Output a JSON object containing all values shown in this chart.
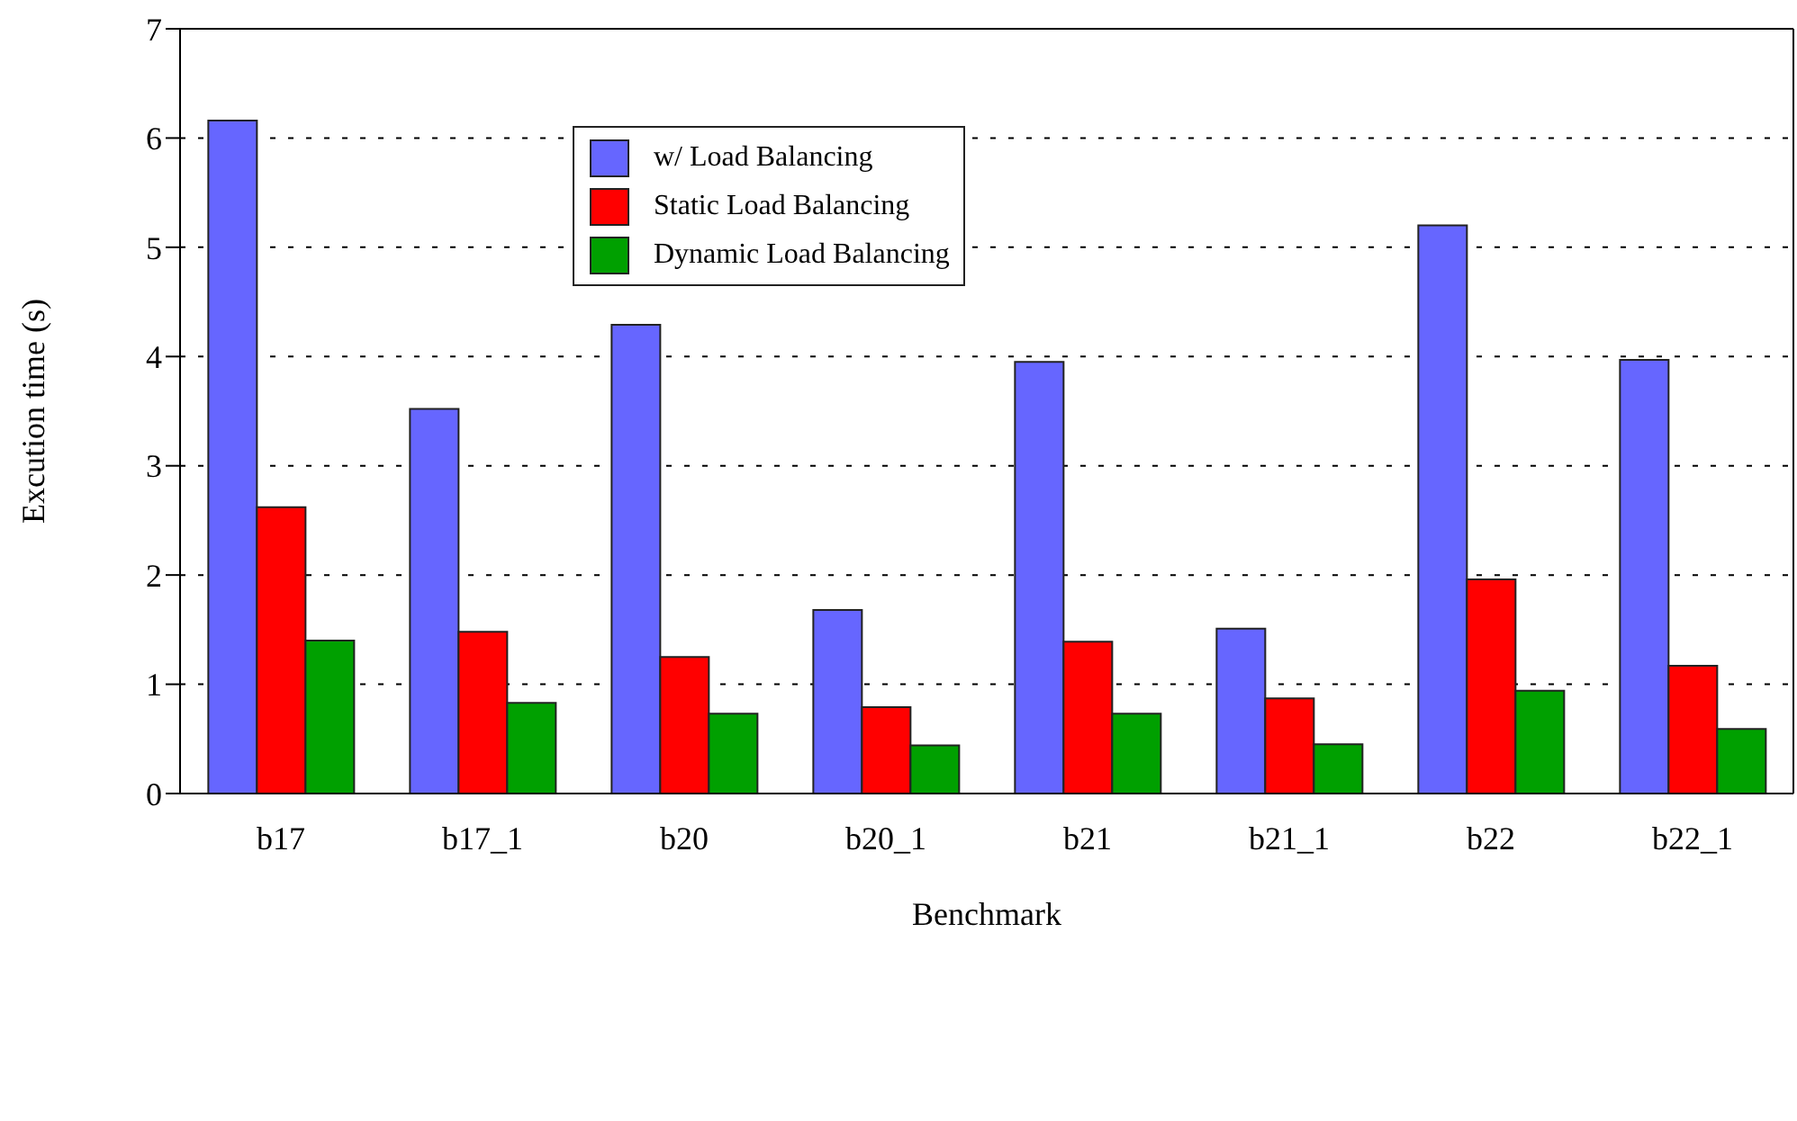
{
  "chart_data": {
    "type": "bar",
    "xlabel": "Benchmark",
    "ylabel": "Excution time (s)",
    "categories": [
      "b17",
      "b17_1",
      "b20",
      "b20_1",
      "b21",
      "b21_1",
      "b22",
      "b22_1"
    ],
    "series": [
      {
        "name": "w/ Load Balancing",
        "color": "#6666ff",
        "values": [
          6.16,
          3.52,
          4.29,
          1.68,
          3.95,
          1.51,
          5.2,
          3.97
        ]
      },
      {
        "name": "Static Load Balancing",
        "color": "#ff0000",
        "values": [
          2.62,
          1.48,
          1.25,
          0.79,
          1.39,
          0.87,
          1.96,
          1.17
        ]
      },
      {
        "name": "Dynamic Load Balancing",
        "color": "#00a000",
        "values": [
          1.4,
          0.83,
          0.73,
          0.44,
          0.73,
          0.45,
          0.94,
          0.59
        ]
      }
    ],
    "ylim": [
      0,
      7
    ],
    "yticks": [
      0,
      1,
      2,
      3,
      4,
      5,
      6,
      7
    ],
    "grid": "y",
    "legend": "top"
  }
}
